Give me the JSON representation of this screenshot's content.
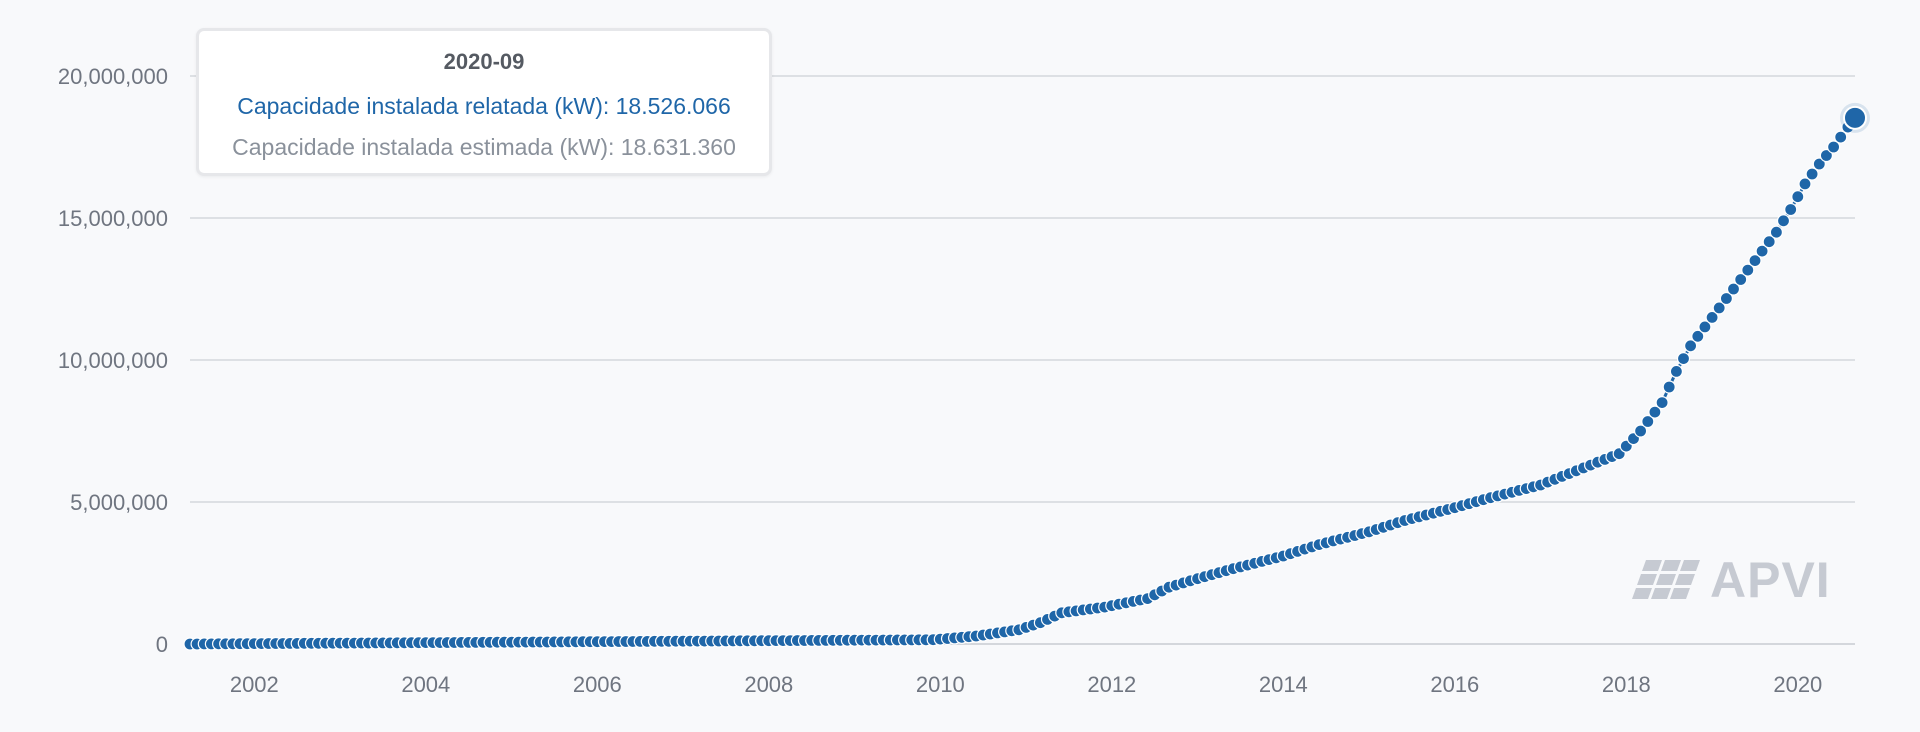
{
  "colors": {
    "series": "#1f66a8",
    "grid": "#d4d7dc",
    "axis_text": "#6f7580",
    "tooltip_estimated": "#8a919b",
    "logo": "#c6cad2"
  },
  "tooltip": {
    "title": "2020-09",
    "reported_line": "Capacidade instalada relatada (kW): 18.526.066",
    "estimated_line": "Capacidade instalada estimada (kW): 18.631.360"
  },
  "logo": {
    "text": "APVI",
    "icon": "solar-panel-icon"
  },
  "chart_data": {
    "type": "line",
    "xlabel": "",
    "ylabel": "",
    "x_ticks": [
      "2002",
      "2004",
      "2006",
      "2008",
      "2010",
      "2012",
      "2014",
      "2016",
      "2018",
      "2020"
    ],
    "y_ticks": [
      "0",
      "5,000,000",
      "10,000,000",
      "15,000,000",
      "20,000,000"
    ],
    "ylim": [
      0,
      20000000
    ],
    "x_range": [
      "2001-04",
      "2020-09"
    ],
    "grid": "horizontal",
    "markers": true,
    "highlighted_point": {
      "x": "2020-09",
      "y": 18526066
    },
    "series": [
      {
        "name": "Capacidade instalada relatada (kW)",
        "points": [
          [
            "2001-04",
            0
          ],
          [
            "2009-12",
            150000
          ],
          [
            "2010-06",
            280000
          ],
          [
            "2010-12",
            500000
          ],
          [
            "2011-03",
            750000
          ],
          [
            "2011-06",
            1100000
          ],
          [
            "2011-12",
            1300000
          ],
          [
            "2012-06",
            1600000
          ],
          [
            "2012-09",
            2000000
          ],
          [
            "2013-01",
            2300000
          ],
          [
            "2013-06",
            2650000
          ],
          [
            "2014-01",
            3100000
          ],
          [
            "2014-06",
            3500000
          ],
          [
            "2015-01",
            3950000
          ],
          [
            "2015-06",
            4350000
          ],
          [
            "2016-01",
            4800000
          ],
          [
            "2016-06",
            5150000
          ],
          [
            "2017-01",
            5600000
          ],
          [
            "2017-06",
            6100000
          ],
          [
            "2017-12",
            6700000
          ],
          [
            "2018-03",
            7500000
          ],
          [
            "2018-06",
            8500000
          ],
          [
            "2018-08",
            9600000
          ],
          [
            "2018-10",
            10500000
          ],
          [
            "2019-01",
            11500000
          ],
          [
            "2019-04",
            12500000
          ],
          [
            "2019-07",
            13500000
          ],
          [
            "2019-10",
            14500000
          ],
          [
            "2019-12",
            15300000
          ],
          [
            "2020-02",
            16200000
          ],
          [
            "2020-04",
            16900000
          ],
          [
            "2020-06",
            17500000
          ],
          [
            "2020-08",
            18200000
          ],
          [
            "2020-09",
            18526066
          ]
        ]
      }
    ]
  }
}
